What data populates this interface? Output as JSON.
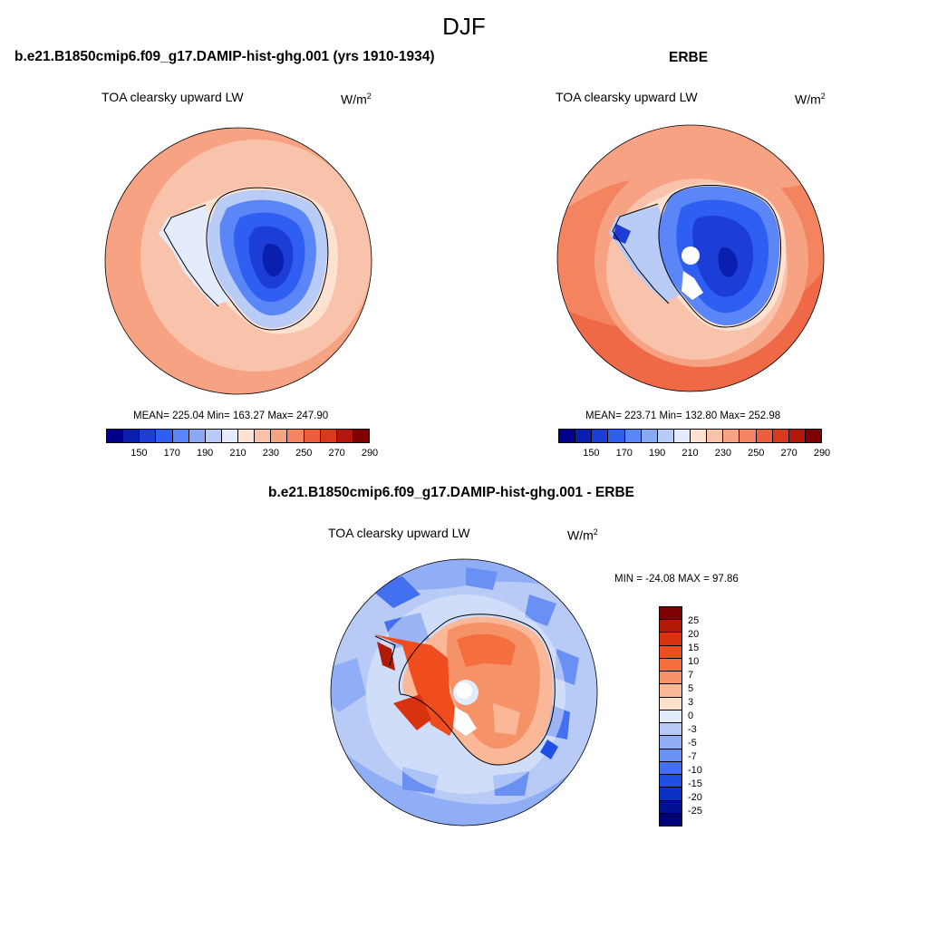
{
  "figure_title": "DJF",
  "panels": [
    {
      "title": "b.e21.B1850cmip6.f09_g17.DAMIP-hist-ghg.001 (yrs 1910-1934)",
      "variable": "TOA clearsky upward LW",
      "units": "W/m",
      "units_exp": "2",
      "stats": "MEAN= 225.04  Min= 163.27  Max= 247.90",
      "colorbar_ticks": [
        "150",
        "170",
        "190",
        "210",
        "230",
        "250",
        "270",
        "290"
      ]
    },
    {
      "title": "ERBE",
      "variable": "TOA clearsky upward LW",
      "units": "W/m",
      "units_exp": "2",
      "stats": "MEAN= 223.71  Min= 132.80  Max= 252.98",
      "colorbar_ticks": [
        "150",
        "170",
        "190",
        "210",
        "230",
        "250",
        "270",
        "290"
      ]
    },
    {
      "title": "b.e21.B1850cmip6.f09_g17.DAMIP-hist-ghg.001 - ERBE",
      "variable": "TOA clearsky upward LW",
      "units": "W/m",
      "units_exp": "2",
      "stats": "MIN = -24.08 MAX =  97.86",
      "colorbar_ticks": [
        "25",
        "20",
        "15",
        "10",
        "7",
        "5",
        "3",
        "0",
        "-3",
        "-5",
        "-7",
        "-10",
        "-15",
        "-20",
        "-25"
      ]
    }
  ],
  "colors": {
    "abs_scale": [
      "#00008b",
      "#0a1fb0",
      "#1c3ed6",
      "#2f5ef2",
      "#5a86f7",
      "#8aa9f5",
      "#b9ccf7",
      "#e4ecfb",
      "#fde2d2",
      "#f9c2aa",
      "#f6a283",
      "#f3845f",
      "#ee5e3c",
      "#d9391c",
      "#b3170b",
      "#7f0000"
    ],
    "diff_scale": [
      "#7f0000",
      "#b01a06",
      "#d8330f",
      "#f04d1e",
      "#f46e3e",
      "#f69268",
      "#fab898",
      "#fde0cc",
      "#e3ecfb",
      "#b8cbf7",
      "#8faef5",
      "#6a90f4",
      "#4370f0",
      "#1f4fe4",
      "#0a30c6",
      "#001293",
      "#00007a"
    ]
  }
}
